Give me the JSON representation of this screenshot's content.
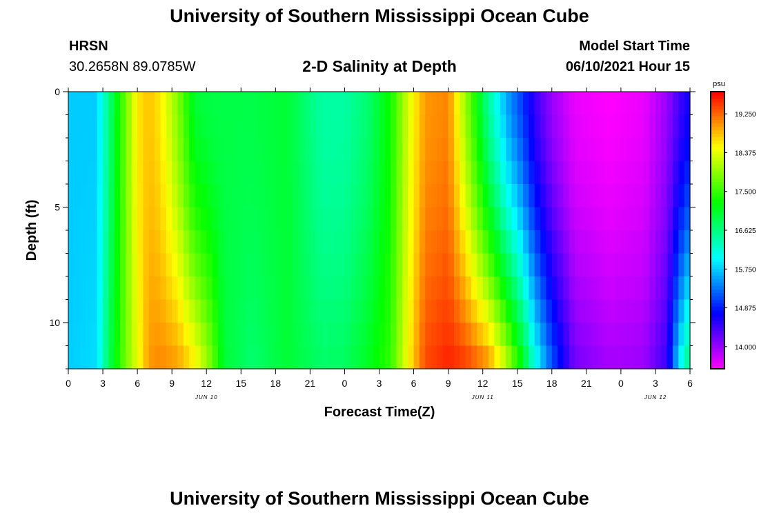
{
  "header": {
    "main_title": "University of Southern Mississippi Ocean Cube",
    "station": "HRSN",
    "coords": "30.2658N  89.0785W",
    "plot_title": "2-D Salinity at Depth",
    "model_label": "Model Start Time",
    "model_time": "06/10/2021 Hour 15"
  },
  "footer": {
    "title": "University of Southern Mississippi Ocean Cube"
  },
  "chart_data": {
    "type": "heatmap",
    "title": "2-D Salinity at Depth",
    "xlabel": "Forecast Time(Z)",
    "ylabel": "Depth (ft)",
    "x_hours_range": [
      0,
      54
    ],
    "ylim": [
      0,
      12
    ],
    "x_ticks": [
      {
        "h": 0,
        "label": "0"
      },
      {
        "h": 3,
        "label": "3"
      },
      {
        "h": 6,
        "label": "6"
      },
      {
        "h": 9,
        "label": "9"
      },
      {
        "h": 12,
        "label": "12"
      },
      {
        "h": 15,
        "label": "15"
      },
      {
        "h": 18,
        "label": "18"
      },
      {
        "h": 21,
        "label": "21"
      },
      {
        "h": 24,
        "label": "0"
      },
      {
        "h": 27,
        "label": "3"
      },
      {
        "h": 30,
        "label": "6"
      },
      {
        "h": 33,
        "label": "9"
      },
      {
        "h": 36,
        "label": "12"
      },
      {
        "h": 39,
        "label": "15"
      },
      {
        "h": 42,
        "label": "18"
      },
      {
        "h": 45,
        "label": "21"
      },
      {
        "h": 48,
        "label": "0"
      },
      {
        "h": 51,
        "label": "3"
      },
      {
        "h": 54,
        "label": "6"
      }
    ],
    "date_labels": [
      {
        "h": 12,
        "label": "JUN 10"
      },
      {
        "h": 36,
        "label": "JUN 11"
      },
      {
        "h": 51,
        "label": "JUN 12"
      }
    ],
    "y_ticks": [
      {
        "d": 0,
        "label": "0"
      },
      {
        "d": 5,
        "label": "5"
      },
      {
        "d": 10,
        "label": "10"
      }
    ],
    "colorbar": {
      "unit": "psu",
      "min": 13.5,
      "max": 19.75,
      "ticks": [
        {
          "v": 19.25,
          "label": "19.250"
        },
        {
          "v": 18.375,
          "label": "18.375"
        },
        {
          "v": 17.5,
          "label": "17.500"
        },
        {
          "v": 16.625,
          "label": "16.625"
        },
        {
          "v": 15.75,
          "label": "15.750"
        },
        {
          "v": 14.875,
          "label": "14.875"
        },
        {
          "v": 14.0,
          "label": "14.000"
        }
      ]
    },
    "hour_step": 0.5,
    "depth_levels": 12,
    "keyframes": [
      {
        "h": 0,
        "top": 15.75,
        "bot": 15.75
      },
      {
        "h": 2.5,
        "top": 15.75,
        "bot": 15.85
      },
      {
        "h": 3.5,
        "top": 16.6,
        "bot": 16.8
      },
      {
        "h": 4.5,
        "top": 17.4,
        "bot": 17.5
      },
      {
        "h": 6,
        "top": 18.6,
        "bot": 18.4
      },
      {
        "h": 7,
        "top": 18.8,
        "bot": 19.0
      },
      {
        "h": 8,
        "top": 18.6,
        "bot": 19.1
      },
      {
        "h": 9.5,
        "top": 17.9,
        "bot": 19.0
      },
      {
        "h": 11,
        "top": 17.0,
        "bot": 18.6
      },
      {
        "h": 12.5,
        "top": 16.9,
        "bot": 17.8
      },
      {
        "h": 13.5,
        "top": 16.9,
        "bot": 17.0
      },
      {
        "h": 16,
        "top": 16.9,
        "bot": 16.7
      },
      {
        "h": 19,
        "top": 17.0,
        "bot": 17.0
      },
      {
        "h": 22,
        "top": 16.45,
        "bot": 16.75
      },
      {
        "h": 24,
        "top": 16.45,
        "bot": 16.8
      },
      {
        "h": 26,
        "top": 16.7,
        "bot": 17.1
      },
      {
        "h": 28,
        "top": 17.3,
        "bot": 17.5
      },
      {
        "h": 29.5,
        "top": 18.3,
        "bot": 18.5
      },
      {
        "h": 31,
        "top": 19.0,
        "bot": 19.4
      },
      {
        "h": 33,
        "top": 19.1,
        "bot": 19.6
      },
      {
        "h": 34.5,
        "top": 18.0,
        "bot": 19.5
      },
      {
        "h": 36.5,
        "top": 16.5,
        "bot": 19.1
      },
      {
        "h": 38,
        "top": 15.6,
        "bot": 18.3
      },
      {
        "h": 39.5,
        "top": 15.0,
        "bot": 17.2
      },
      {
        "h": 40.5,
        "top": 14.5,
        "bot": 16.2
      },
      {
        "h": 42,
        "top": 14.0,
        "bot": 15.2
      },
      {
        "h": 44,
        "top": 13.6,
        "bot": 14.2
      },
      {
        "h": 47,
        "top": 13.5,
        "bot": 13.95
      },
      {
        "h": 50,
        "top": 13.6,
        "bot": 14.0
      },
      {
        "h": 52,
        "top": 14.0,
        "bot": 14.5
      },
      {
        "h": 53,
        "top": 14.4,
        "bot": 15.9
      },
      {
        "h": 54,
        "top": 14.7,
        "bot": 16.8
      }
    ]
  }
}
